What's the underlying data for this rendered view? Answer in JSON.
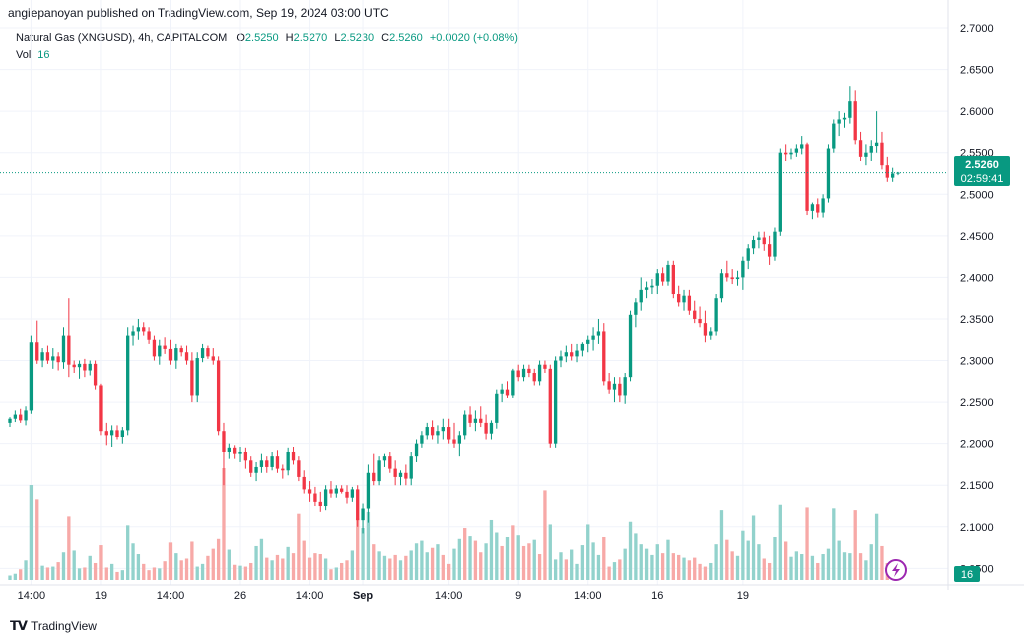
{
  "header": {
    "published": "angiepanoyan published on TradingView.com, Sep 19, 2024 03:00 UTC"
  },
  "legend": {
    "symbol": "Natural Gas (XNGUSD), 4h, CAPITALCOM",
    "o_label": "O",
    "o_value": "2.5250",
    "h_label": "H",
    "h_value": "2.5270",
    "l_label": "L",
    "l_value": "2.5230",
    "c_label": "C",
    "c_value": "2.5260",
    "change": "+0.0020 (+0.08%)",
    "vol_label": "Vol",
    "vol_value": "16"
  },
  "price_tag": {
    "price": "2.5260",
    "countdown": "02:59:41"
  },
  "vol_tag": "16",
  "footer": {
    "brand": "TradingView"
  },
  "colors": {
    "up": "#089981",
    "down": "#F23645",
    "vol_up": "#92D2CC",
    "vol_down": "#F7A9A7",
    "axis_text": "#131722",
    "grid": "#F0F3FA"
  },
  "chart_data": {
    "type": "candlestick",
    "title": "Natural Gas (XNGUSD), 4h, CAPITALCOM",
    "ylim": [
      2.03,
      2.7
    ],
    "y_ticks": [
      "2.7000",
      "2.6500",
      "2.6000",
      "2.5500",
      "2.5000",
      "2.4500",
      "2.4000",
      "2.3500",
      "2.3000",
      "2.2500",
      "2.2000",
      "2.1500",
      "2.1000",
      "2.0500"
    ],
    "x_ticks": [
      {
        "index": 4,
        "label": "14:00"
      },
      {
        "index": 17,
        "label": "19"
      },
      {
        "index": 30,
        "label": "14:00"
      },
      {
        "index": 43,
        "label": "26"
      },
      {
        "index": 56,
        "label": "14:00"
      },
      {
        "index": 66,
        "label": "Sep"
      },
      {
        "index": 82,
        "label": "14:00"
      },
      {
        "index": 95,
        "label": "9"
      },
      {
        "index": 108,
        "label": "14:00"
      },
      {
        "index": 121,
        "label": "16"
      },
      {
        "index": 137,
        "label": "19"
      }
    ],
    "last_close": 2.526,
    "ohlc": [
      [
        2.225,
        2.232,
        2.22,
        2.23
      ],
      [
        2.23,
        2.24,
        2.226,
        2.235
      ],
      [
        2.235,
        2.242,
        2.225,
        2.228
      ],
      [
        2.228,
        2.245,
        2.222,
        2.24
      ],
      [
        2.24,
        2.33,
        2.236,
        2.322
      ],
      [
        2.322,
        2.348,
        2.296,
        2.3
      ],
      [
        2.3,
        2.315,
        2.292,
        2.31
      ],
      [
        2.31,
        2.318,
        2.296,
        2.3
      ],
      [
        2.3,
        2.315,
        2.29,
        2.305
      ],
      [
        2.305,
        2.31,
        2.288,
        2.298
      ],
      [
        2.298,
        2.34,
        2.29,
        2.33
      ],
      [
        2.33,
        2.375,
        2.28,
        2.295
      ],
      [
        2.295,
        2.3,
        2.285,
        2.292
      ],
      [
        2.292,
        2.3,
        2.278,
        2.296
      ],
      [
        2.296,
        2.302,
        2.28,
        2.288
      ],
      [
        2.288,
        2.3,
        2.282,
        2.296
      ],
      [
        2.296,
        2.3,
        2.265,
        2.27
      ],
      [
        2.27,
        2.272,
        2.21,
        2.215
      ],
      [
        2.215,
        2.225,
        2.198,
        2.21
      ],
      [
        2.21,
        2.222,
        2.196,
        2.216
      ],
      [
        2.216,
        2.222,
        2.205,
        2.208
      ],
      [
        2.208,
        2.22,
        2.2,
        2.216
      ],
      [
        2.216,
        2.34,
        2.21,
        2.33
      ],
      [
        2.33,
        2.342,
        2.318,
        2.335
      ],
      [
        2.335,
        2.35,
        2.325,
        2.34
      ],
      [
        2.34,
        2.346,
        2.33,
        2.335
      ],
      [
        2.335,
        2.34,
        2.32,
        2.325
      ],
      [
        2.325,
        2.33,
        2.3,
        2.305
      ],
      [
        2.305,
        2.325,
        2.295,
        2.318
      ],
      [
        2.318,
        2.328,
        2.308,
        2.314
      ],
      [
        2.314,
        2.325,
        2.295,
        2.3
      ],
      [
        2.3,
        2.32,
        2.29,
        2.315
      ],
      [
        2.315,
        2.318,
        2.305,
        2.31
      ],
      [
        2.31,
        2.318,
        2.295,
        2.3
      ],
      [
        2.3,
        2.31,
        2.25,
        2.258
      ],
      [
        2.258,
        2.31,
        2.25,
        2.303
      ],
      [
        2.303,
        2.32,
        2.298,
        2.315
      ],
      [
        2.315,
        2.318,
        2.302,
        2.305
      ],
      [
        2.305,
        2.315,
        2.295,
        2.3
      ],
      [
        2.3,
        2.305,
        2.21,
        2.215
      ],
      [
        2.215,
        2.225,
        2.15,
        2.19
      ],
      [
        2.19,
        2.2,
        2.182,
        2.195
      ],
      [
        2.195,
        2.198,
        2.182,
        2.188
      ],
      [
        2.188,
        2.196,
        2.178,
        2.19
      ],
      [
        2.19,
        2.195,
        2.17,
        2.18
      ],
      [
        2.18,
        2.185,
        2.16,
        2.165
      ],
      [
        2.165,
        2.178,
        2.155,
        2.172
      ],
      [
        2.172,
        2.188,
        2.165,
        2.18
      ],
      [
        2.18,
        2.185,
        2.165,
        2.172
      ],
      [
        2.172,
        2.19,
        2.168,
        2.185
      ],
      [
        2.185,
        2.192,
        2.165,
        2.17
      ],
      [
        2.17,
        2.175,
        2.158,
        2.168
      ],
      [
        2.168,
        2.195,
        2.162,
        2.19
      ],
      [
        2.19,
        2.196,
        2.175,
        2.18
      ],
      [
        2.18,
        2.185,
        2.155,
        2.16
      ],
      [
        2.16,
        2.168,
        2.14,
        2.145
      ],
      [
        2.145,
        2.155,
        2.13,
        2.14
      ],
      [
        2.14,
        2.148,
        2.125,
        2.13
      ],
      [
        2.13,
        2.142,
        2.118,
        2.125
      ],
      [
        2.125,
        2.15,
        2.12,
        2.145
      ],
      [
        2.145,
        2.155,
        2.135,
        2.14
      ],
      [
        2.14,
        2.15,
        2.135,
        2.146
      ],
      [
        2.146,
        2.15,
        2.14,
        2.142
      ],
      [
        2.142,
        2.15,
        2.128,
        2.135
      ],
      [
        2.135,
        2.148,
        2.13,
        2.145
      ],
      [
        2.145,
        2.15,
        2.1,
        2.108
      ],
      [
        2.108,
        2.128,
        2.092,
        2.122
      ],
      [
        2.122,
        2.175,
        2.105,
        2.165
      ],
      [
        2.165,
        2.188,
        2.15,
        2.155
      ],
      [
        2.155,
        2.185,
        2.15,
        2.18
      ],
      [
        2.18,
        2.188,
        2.172,
        2.185
      ],
      [
        2.185,
        2.19,
        2.165,
        2.17
      ],
      [
        2.17,
        2.18,
        2.15,
        2.16
      ],
      [
        2.16,
        2.168,
        2.15,
        2.165
      ],
      [
        2.165,
        2.175,
        2.15,
        2.158
      ],
      [
        2.158,
        2.19,
        2.15,
        2.185
      ],
      [
        2.185,
        2.205,
        2.178,
        2.2
      ],
      [
        2.2,
        2.215,
        2.195,
        2.21
      ],
      [
        2.21,
        2.225,
        2.205,
        2.22
      ],
      [
        2.22,
        2.228,
        2.205,
        2.21
      ],
      [
        2.21,
        2.222,
        2.2,
        2.215
      ],
      [
        2.215,
        2.23,
        2.205,
        2.22
      ],
      [
        2.22,
        2.23,
        2.2,
        2.205
      ],
      [
        2.205,
        2.225,
        2.195,
        2.2
      ],
      [
        2.2,
        2.215,
        2.185,
        2.21
      ],
      [
        2.21,
        2.24,
        2.205,
        2.235
      ],
      [
        2.235,
        2.245,
        2.22,
        2.225
      ],
      [
        2.225,
        2.24,
        2.215,
        2.23
      ],
      [
        2.23,
        2.245,
        2.22,
        2.225
      ],
      [
        2.225,
        2.235,
        2.205,
        2.212
      ],
      [
        2.212,
        2.228,
        2.205,
        2.225
      ],
      [
        2.225,
        2.265,
        2.218,
        2.26
      ],
      [
        2.26,
        2.272,
        2.25,
        2.265
      ],
      [
        2.265,
        2.275,
        2.255,
        2.258
      ],
      [
        2.258,
        2.29,
        2.255,
        2.288
      ],
      [
        2.288,
        2.295,
        2.275,
        2.28
      ],
      [
        2.28,
        2.295,
        2.275,
        2.29
      ],
      [
        2.29,
        2.295,
        2.28,
        2.285
      ],
      [
        2.285,
        2.29,
        2.27,
        2.275
      ],
      [
        2.275,
        2.3,
        2.27,
        2.295
      ],
      [
        2.295,
        2.3,
        2.285,
        2.29
      ],
      [
        2.29,
        2.295,
        2.195,
        2.2
      ],
      [
        2.2,
        2.305,
        2.195,
        2.3
      ],
      [
        2.3,
        2.312,
        2.292,
        2.305
      ],
      [
        2.305,
        2.318,
        2.298,
        2.31
      ],
      [
        2.31,
        2.32,
        2.3,
        2.305
      ],
      [
        2.305,
        2.32,
        2.298,
        2.312
      ],
      [
        2.312,
        2.322,
        2.305,
        2.32
      ]
    ],
    "volume": [
      5,
      7,
      12,
      22,
      106,
      90,
      16,
      14,
      15,
      20,
      31,
      71,
      33,
      13,
      14,
      27,
      19,
      39,
      14,
      18,
      9,
      11,
      61,
      41,
      29,
      18,
      11,
      14,
      13,
      21,
      42,
      30,
      22,
      24,
      43,
      15,
      18,
      27,
      35,
      46,
      125,
      34,
      17,
      16,
      15,
      19,
      38,
      46,
      25,
      22,
      28,
      24,
      37,
      30,
      74,
      44,
      25,
      30,
      29,
      24,
      12,
      14,
      19,
      22,
      33,
      69,
      58,
      76,
      40,
      32,
      27,
      24,
      28,
      22,
      27,
      33,
      41,
      44,
      31,
      36,
      40,
      28,
      18,
      35,
      46,
      58,
      49,
      44,
      31,
      41,
      67,
      53,
      38,
      48,
      61,
      50,
      38,
      41,
      45,
      29,
      100,
      62,
      23,
      31,
      23,
      34,
      18,
      39
    ],
    "volume_dir": [
      1,
      1,
      0,
      1,
      1,
      0,
      1,
      0,
      1,
      0,
      1,
      0,
      1,
      1,
      0,
      1,
      0,
      0,
      0,
      1,
      0,
      1,
      1,
      1,
      1,
      0,
      0,
      0,
      1,
      0,
      0,
      1,
      0,
      0,
      0,
      1,
      1,
      0,
      0,
      0,
      0,
      1,
      0,
      1,
      0,
      0,
      1,
      1,
      0,
      1,
      0,
      0,
      1,
      0,
      0,
      0,
      0,
      0,
      0,
      1,
      0,
      1,
      0,
      0,
      1,
      0,
      1,
      1,
      0,
      1,
      1,
      0,
      0,
      1,
      0,
      1,
      1,
      1,
      1,
      0,
      1,
      0,
      0,
      1,
      1,
      0,
      1,
      0,
      0,
      1,
      1,
      1,
      0,
      1,
      0,
      1,
      0,
      0,
      1,
      0,
      0,
      1,
      1,
      1,
      0,
      1,
      1,
      1
    ],
    "ohlc_tail": [
      [
        2.32,
        2.33,
        2.31,
        2.325
      ],
      [
        2.325,
        2.34,
        2.312,
        2.33
      ],
      [
        2.33,
        2.35,
        2.32,
        2.335
      ],
      [
        2.335,
        2.345,
        2.27,
        2.275
      ],
      [
        2.275,
        2.285,
        2.26,
        2.265
      ],
      [
        2.265,
        2.28,
        2.25,
        2.272
      ],
      [
        2.272,
        2.28,
        2.25,
        2.258
      ],
      [
        2.258,
        2.285,
        2.248,
        2.28
      ],
      [
        2.28,
        2.36,
        2.275,
        2.355
      ],
      [
        2.355,
        2.375,
        2.34,
        2.37
      ],
      [
        2.37,
        2.4,
        2.36,
        2.385
      ],
      [
        2.385,
        2.395,
        2.375,
        2.388
      ],
      [
        2.388,
        2.398,
        2.38,
        2.39
      ],
      [
        2.39,
        2.41,
        2.38,
        2.405
      ],
      [
        2.405,
        2.412,
        2.39,
        2.395
      ],
      [
        2.395,
        2.42,
        2.39,
        2.415
      ],
      [
        2.415,
        2.42,
        2.375,
        2.38
      ],
      [
        2.38,
        2.39,
        2.365,
        2.37
      ],
      [
        2.37,
        2.385,
        2.36,
        2.378
      ],
      [
        2.378,
        2.385,
        2.355,
        2.36
      ],
      [
        2.36,
        2.372,
        2.345,
        2.35
      ],
      [
        2.35,
        2.365,
        2.34,
        2.345
      ],
      [
        2.345,
        2.36,
        2.322,
        2.33
      ],
      [
        2.33,
        2.34,
        2.325,
        2.335
      ],
      [
        2.335,
        2.38,
        2.33,
        2.375
      ],
      [
        2.375,
        2.41,
        2.37,
        2.405
      ],
      [
        2.405,
        2.42,
        2.395,
        2.4
      ],
      [
        2.4,
        2.41,
        2.392,
        2.398
      ],
      [
        2.398,
        2.408,
        2.39,
        2.4
      ],
      [
        2.4,
        2.425,
        2.385,
        2.42
      ],
      [
        2.42,
        2.44,
        2.41,
        2.435
      ],
      [
        2.435,
        2.45,
        2.428,
        2.445
      ],
      [
        2.445,
        2.455,
        2.435,
        2.448
      ],
      [
        2.448,
        2.455,
        2.432,
        2.44
      ],
      [
        2.44,
        2.45,
        2.415,
        2.425
      ],
      [
        2.425,
        2.46,
        2.42,
        2.455
      ],
      [
        2.455,
        2.555,
        2.45,
        2.55
      ],
      [
        2.55,
        2.56,
        2.54,
        2.548
      ],
      [
        2.548,
        2.555,
        2.542,
        2.55
      ],
      [
        2.55,
        2.56,
        2.545,
        2.555
      ],
      [
        2.555,
        2.57,
        2.548,
        2.56
      ],
      [
        2.56,
        2.562,
        2.475,
        2.48
      ],
      [
        2.48,
        2.49,
        2.47,
        2.488
      ],
      [
        2.488,
        2.495,
        2.472,
        2.478
      ],
      [
        2.478,
        2.5,
        2.472,
        2.495
      ],
      [
        2.495,
        2.56,
        2.49,
        2.555
      ],
      [
        2.555,
        2.59,
        2.55,
        2.585
      ],
      [
        2.585,
        2.6,
        2.57,
        2.59
      ],
      [
        2.59,
        2.598,
        2.58,
        2.592
      ],
      [
        2.592,
        2.63,
        2.585,
        2.612
      ],
      [
        2.612,
        2.625,
        2.56,
        2.565
      ],
      [
        2.565,
        2.575,
        2.54,
        2.545
      ],
      [
        2.545,
        2.56,
        2.535,
        2.55
      ],
      [
        2.55,
        2.565,
        2.54,
        2.558
      ],
      [
        2.558,
        2.6,
        2.55,
        2.562
      ],
      [
        2.562,
        2.575,
        2.53,
        2.535
      ],
      [
        2.535,
        2.545,
        2.515,
        2.52
      ],
      [
        2.52,
        2.532,
        2.515,
        2.525
      ],
      [
        2.525,
        2.527,
        2.523,
        2.526
      ]
    ],
    "volume_tail": [
      62,
      42,
      28,
      48,
      15,
      20,
      23,
      35,
      65,
      52,
      40,
      35,
      28,
      40,
      30,
      45,
      30,
      28,
      25,
      22,
      25,
      18,
      15,
      19,
      40,
      78,
      45,
      32,
      27,
      55,
      44,
      72,
      40,
      24,
      19,
      48,
      84,
      43,
      26,
      32,
      29,
      81,
      27,
      19,
      29,
      35,
      80,
      44,
      31,
      30,
      78,
      30,
      22,
      40,
      74,
      38,
      19,
      10,
      16
    ],
    "volume_dir_tail": [
      1,
      1,
      1,
      0,
      0,
      1,
      0,
      1,
      1,
      1,
      1,
      1,
      1,
      1,
      0,
      1,
      0,
      0,
      1,
      0,
      0,
      0,
      0,
      1,
      1,
      1,
      0,
      0,
      1,
      1,
      1,
      1,
      1,
      0,
      0,
      1,
      1,
      0,
      1,
      1,
      1,
      0,
      1,
      0,
      1,
      1,
      1,
      1,
      1,
      1,
      0,
      0,
      1,
      1,
      1,
      0,
      0,
      1,
      1
    ]
  }
}
